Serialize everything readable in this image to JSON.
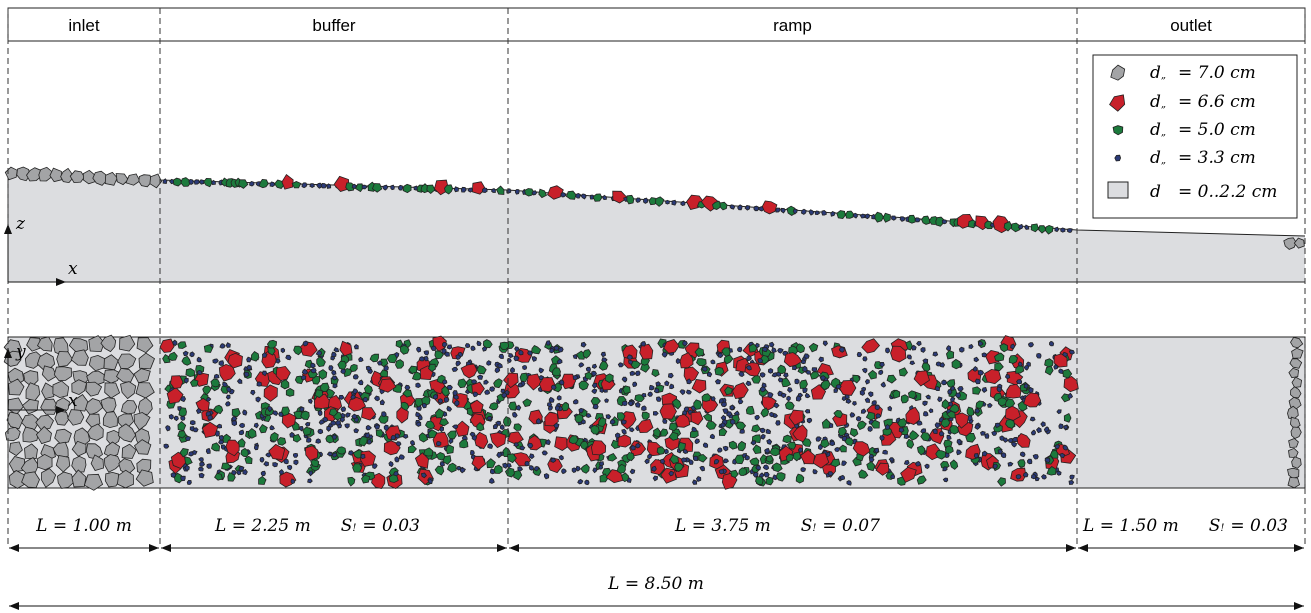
{
  "sections": [
    "inlet",
    "buffer",
    "ramp",
    "outlet"
  ],
  "legend": [
    {
      "symbol": "d",
      "subscript": "„",
      "text": "= 7.0 cm"
    },
    {
      "symbol": "d",
      "subscript": "„",
      "text": "= 6.6 cm"
    },
    {
      "symbol": "d",
      "subscript": "„",
      "text": "= 5.0 cm"
    },
    {
      "symbol": "d",
      "subscript": "„",
      "text": "= 3.3 cm"
    },
    {
      "symbol": "d",
      "text": "= 0..2.2 cm"
    }
  ],
  "axes": {
    "side": [
      "z",
      "x"
    ],
    "top": [
      "y",
      "x"
    ]
  },
  "dimensions": [
    {
      "length": "L = 1.00 m"
    },
    {
      "length": "L = 2.25 m",
      "slope": {
        "symbol": "S",
        "subscript": "!",
        "text": "= 0.03"
      }
    },
    {
      "length": "L = 3.75 m",
      "slope": {
        "symbol": "S",
        "subscript": "!",
        "text": "= 0.07"
      }
    },
    {
      "length": "L = 1.50 m",
      "slope": {
        "symbol": "S",
        "subscript": "!",
        "text": "= 0.03"
      }
    }
  ],
  "total": "L = 8.50 m"
}
